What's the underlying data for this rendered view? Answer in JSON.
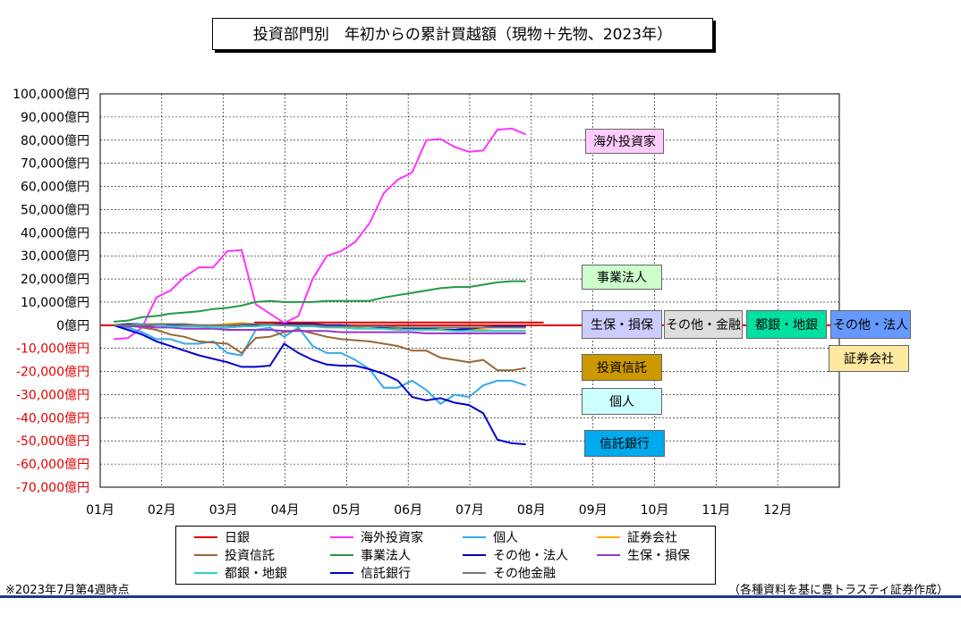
{
  "chart_data": {
    "type": "line",
    "title": "投資部門別　年初からの累計買越額（現物＋先物、2023年）",
    "y_tick_labels": [
      "100,000億円",
      "90,000億円",
      "80,000億円",
      "70,000億円",
      "60,000億円",
      "50,000億円",
      "40,000億円",
      "30,000億円",
      "20,000億円",
      "10,000億円",
      "0億円",
      "-10,000億円",
      "-20,000億円",
      "-30,000億円",
      "-40,000億円",
      "-50,000億円",
      "-60,000億円",
      "-70,000億円"
    ],
    "ylim": [
      -70000,
      100000
    ],
    "y_step": 10000,
    "x_tick_labels": [
      "01月",
      "02月",
      "03月",
      "04月",
      "05月",
      "06月",
      "07月",
      "08月",
      "09月",
      "10月",
      "11月",
      "12月"
    ],
    "x_unit": "月（週次）",
    "grid": true,
    "legend_position": "bottom",
    "series": [
      {
        "name": "日銀",
        "color": "#e00000",
        "values": [
          0,
          0,
          0,
          0,
          0,
          0,
          0,
          0,
          0,
          0,
          0,
          0,
          0,
          0,
          0,
          0,
          0,
          0,
          0,
          0,
          0,
          0,
          0,
          0,
          0,
          0,
          0,
          0,
          0,
          0,
          0,
          0,
          0,
          0,
          0,
          0,
          0,
          0,
          0,
          0,
          0,
          0,
          0,
          0,
          0,
          0,
          0,
          0
        ]
      },
      {
        "name": "海外投資家",
        "color": "#ff33ff",
        "values": [
          -6000,
          -5500,
          -1000,
          12000,
          15000,
          21000,
          25000,
          25000,
          32000,
          32500,
          9000,
          5000,
          1000,
          4000,
          20000,
          30000,
          32000,
          36000,
          44000,
          57000,
          63000,
          66000,
          80000,
          80500,
          77000,
          75000,
          75500,
          84500,
          85000,
          82500
        ]
      },
      {
        "name": "個人",
        "color": "#33aaee",
        "values": [
          0,
          -1000,
          -3000,
          -6000,
          -6000,
          -8000,
          -8000,
          -7000,
          -12000,
          -13000,
          -2000,
          -1000,
          -5000,
          -1000,
          -9000,
          -12000,
          -12000,
          -15000,
          -19000,
          -27000,
          -27000,
          -24000,
          -28000,
          -34000,
          -30000,
          -31000,
          -26000,
          -24000,
          -24000,
          -26000
        ]
      },
      {
        "name": "証券会社",
        "color": "#ffaa00",
        "values": [
          0,
          0,
          500,
          500,
          0,
          -500,
          -500,
          0,
          500,
          1000,
          500,
          0,
          500,
          0,
          0,
          -500,
          -1000,
          -1000,
          -500,
          -1000,
          -1500,
          -2000,
          -1500,
          -1500,
          -2000,
          -2000,
          -2000,
          -2500,
          -2500,
          -2500
        ]
      },
      {
        "name": "投資信託",
        "color": "#996633",
        "values": [
          0,
          0,
          -1000,
          -2000,
          -4000,
          -5000,
          -7000,
          -7500,
          -8000,
          -12000,
          -5500,
          -5000,
          -3000,
          -2000,
          -3500,
          -5000,
          -6000,
          -6500,
          -7000,
          -8000,
          -9000,
          -11000,
          -11000,
          -14000,
          -15000,
          -16000,
          -15000,
          -19500,
          -19500,
          -18500
        ]
      },
      {
        "name": "事業法人",
        "color": "#229944",
        "values": [
          1500,
          2000,
          3500,
          4000,
          5000,
          5500,
          6000,
          7000,
          7500,
          8500,
          10000,
          10500,
          10000,
          10000,
          10000,
          10500,
          10500,
          10500,
          10500,
          12000,
          13000,
          14000,
          15000,
          16000,
          16500,
          16500,
          17500,
          18500,
          19000,
          19000
        ]
      },
      {
        "name": "その他・法人",
        "color": "#0000aa",
        "values": [
          0,
          500,
          500,
          0,
          0,
          -500,
          -500,
          -1000,
          -1000,
          -500,
          0,
          500,
          500,
          500,
          500,
          0,
          0,
          -500,
          -500,
          -1000,
          -1000,
          -1500,
          -1500,
          -2000,
          -2000,
          -1500,
          -1000,
          -500,
          -500,
          -500
        ]
      },
      {
        "name": "生保・損保",
        "color": "#9933cc",
        "values": [
          0,
          -500,
          -500,
          -1000,
          -1000,
          -1500,
          -1500,
          -1500,
          -2000,
          -2000,
          -2000,
          -2000,
          -2500,
          -2500,
          -2500,
          -2500,
          -3000,
          -3000,
          -3000,
          -3000,
          -3000,
          -3000,
          -3500,
          -3500,
          -3500,
          -3500,
          -3500,
          -3500,
          -3500,
          -3500
        ]
      },
      {
        "name": "都銀・地銀",
        "color": "#33cccc",
        "values": [
          0,
          0,
          500,
          0,
          -500,
          -500,
          -500,
          -1000,
          -1000,
          -500,
          -500,
          0,
          0,
          -500,
          -500,
          -1000,
          -1000,
          -1500,
          -1500,
          -1500,
          -2000,
          -2000,
          -2000,
          -2000,
          -2500,
          -2500,
          -2500,
          -2500,
          -2500,
          -2500
        ]
      },
      {
        "name": "信託銀行",
        "color": "#0000cc",
        "values": [
          0,
          -2000,
          -4000,
          -7000,
          -9000,
          -11000,
          -13000,
          -14500,
          -16000,
          -18000,
          -18000,
          -17500,
          -8000,
          -12000,
          -15000,
          -17000,
          -17500,
          -17500,
          -19000,
          -21000,
          -24000,
          -31000,
          -32500,
          -31500,
          -33500,
          -34500,
          -38000,
          -49500,
          -51000,
          -51500
        ]
      },
      {
        "name": "その他金融",
        "color": "#777777",
        "values": [
          0,
          0,
          0,
          500,
          500,
          500,
          0,
          0,
          0,
          500,
          500,
          500,
          0,
          0,
          0,
          -500,
          -500,
          -500,
          -500,
          -500,
          -1000,
          -1000,
          -1000,
          -1000,
          -1000,
          -1000,
          -1000,
          -1000,
          -1000,
          -1000
        ]
      }
    ]
  },
  "annotations": [
    {
      "text": "海外投資家",
      "bg": "#ffccff"
    },
    {
      "text": "事業法人",
      "bg": "#ccffcc"
    },
    {
      "text": "生保・損保",
      "bg": "#ccccff"
    },
    {
      "text": "その他・金融",
      "bg": "#dddddd"
    },
    {
      "text": "都銀・地銀",
      "bg": "#00e0a0"
    },
    {
      "text": "その他・法人",
      "bg": "#6699ff"
    },
    {
      "text": "証券会社",
      "bg": "#ffe8a0"
    },
    {
      "text": "投資信託",
      "bg": "#cc9900"
    },
    {
      "text": "個人",
      "bg": "#ccffff"
    },
    {
      "text": "信託銀行",
      "bg": "#00aaee"
    }
  ],
  "footer": {
    "left_note": "※2023年7月第4週時点",
    "right_note": "（各種資料を基に豊トラスティ証券作成）"
  }
}
